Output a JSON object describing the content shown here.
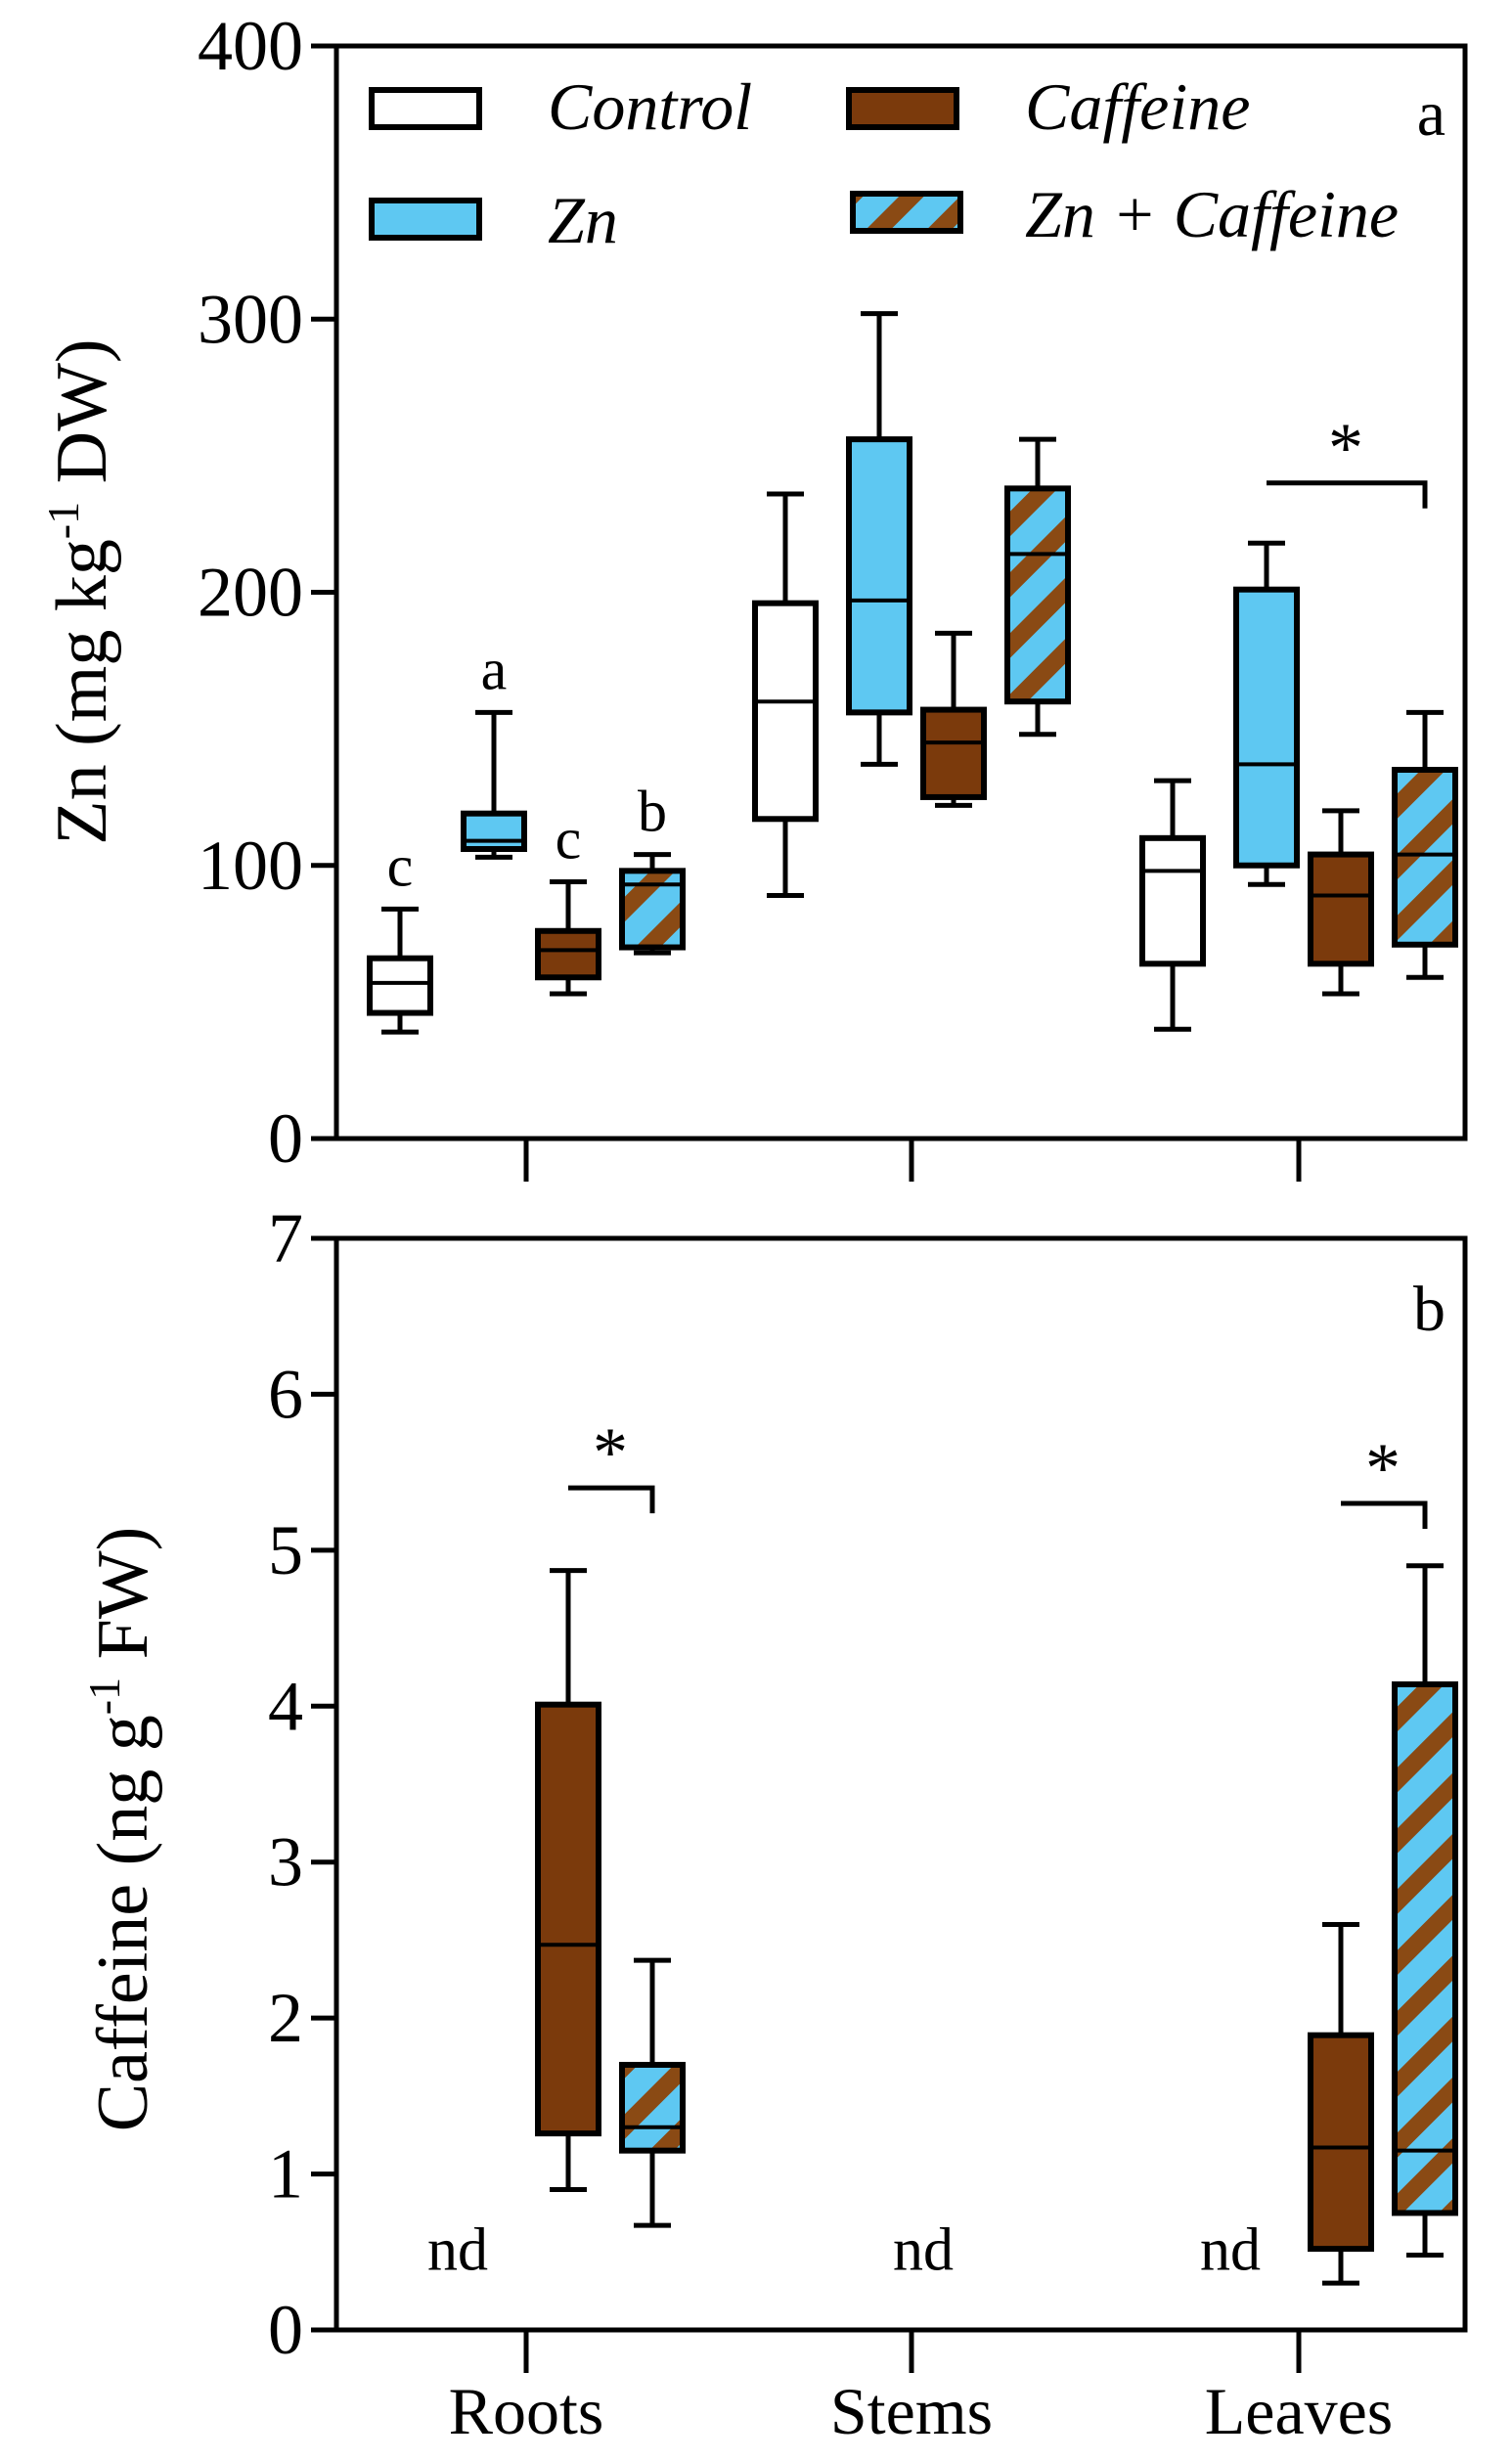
{
  "colors": {
    "control_fill": "#ffffff",
    "zn_fill": "#5ec8f2",
    "caffeine_fill": "#7b3a0c",
    "hatch_stripe": "#8a4a14",
    "line": "#000000"
  },
  "chart_data": [
    {
      "type": "box",
      "panel_label": "a",
      "ylabel_main": "Zn (mg kg",
      "ylabel_sup": "-1",
      "ylabel_end": " DW)",
      "ylim": [
        0,
        400
      ],
      "yticks": [
        0,
        100,
        200,
        300,
        400
      ],
      "categories": [
        "Roots",
        "Stems",
        "Leaves"
      ],
      "legend": {
        "position": "top",
        "entries": [
          "Control",
          "Zn",
          "Caffeine",
          "Zn + Caffeine"
        ]
      },
      "series": [
        {
          "name": "Control",
          "boxes": [
            {
              "category": "Roots",
              "min": 39,
              "q1": 46,
              "median": 57,
              "q3": 66,
              "max": 84,
              "letter": "c"
            },
            {
              "category": "Stems",
              "min": 89,
              "q1": 117,
              "median": 160,
              "q3": 196,
              "max": 236,
              "letter": ""
            },
            {
              "category": "Leaves",
              "min": 40,
              "q1": 64,
              "median": 98,
              "q3": 110,
              "max": 131,
              "letter": ""
            }
          ]
        },
        {
          "name": "Zn",
          "boxes": [
            {
              "category": "Roots",
              "min": 103,
              "q1": 106,
              "median": 109,
              "q3": 119,
              "max": 156,
              "letter": "a"
            },
            {
              "category": "Stems",
              "min": 137,
              "q1": 156,
              "median": 197,
              "q3": 256,
              "max": 302,
              "letter": ""
            },
            {
              "category": "Leaves",
              "min": 93,
              "q1": 100,
              "median": 137,
              "q3": 201,
              "max": 218,
              "letter": ""
            }
          ]
        },
        {
          "name": "Caffeine",
          "boxes": [
            {
              "category": "Roots",
              "min": 53,
              "q1": 59,
              "median": 69,
              "q3": 76,
              "max": 94,
              "letter": "c"
            },
            {
              "category": "Stems",
              "min": 122,
              "q1": 125,
              "median": 145,
              "q3": 157,
              "max": 185,
              "letter": ""
            },
            {
              "category": "Leaves",
              "min": 53,
              "q1": 64,
              "median": 89,
              "q3": 104,
              "max": 120,
              "letter": ""
            }
          ]
        },
        {
          "name": "Zn + Caffeine",
          "boxes": [
            {
              "category": "Roots",
              "min": 68,
              "q1": 70,
              "median": 93,
              "q3": 98,
              "max": 104,
              "letter": "b"
            },
            {
              "category": "Stems",
              "min": 148,
              "q1": 160,
              "median": 214,
              "q3": 238,
              "max": 256,
              "letter": ""
            },
            {
              "category": "Leaves",
              "min": 59,
              "q1": 71,
              "median": 104,
              "q3": 135,
              "max": 156,
              "letter": ""
            }
          ]
        }
      ],
      "significance": [
        {
          "category": "Leaves",
          "from": "Zn",
          "to": "Zn + Caffeine",
          "label": "*",
          "y": 240
        }
      ],
      "nd": []
    },
    {
      "type": "box",
      "panel_label": "b",
      "ylabel_main": "Caffeine (ng g",
      "ylabel_sup": "-1",
      "ylabel_end": " FW)",
      "ylim": [
        0,
        7
      ],
      "yticks": [
        0,
        1,
        2,
        3,
        4,
        5,
        6,
        7
      ],
      "categories": [
        "Roots",
        "Stems",
        "Leaves"
      ],
      "series": [
        {
          "name": "Caffeine",
          "boxes": [
            {
              "category": "Roots",
              "min": 0.9,
              "q1": 1.26,
              "median": 2.47,
              "q3": 4.01,
              "max": 4.87
            },
            {
              "category": "Leaves",
              "min": 0.3,
              "q1": 0.52,
              "median": 1.17,
              "q3": 1.89,
              "max": 2.6
            }
          ]
        },
        {
          "name": "Zn + Caffeine",
          "boxes": [
            {
              "category": "Roots",
              "min": 0.67,
              "q1": 1.15,
              "median": 1.3,
              "q3": 1.7,
              "max": 2.37
            },
            {
              "category": "Leaves",
              "min": 0.48,
              "q1": 0.75,
              "median": 1.15,
              "q3": 4.14,
              "max": 4.9
            }
          ]
        }
      ],
      "significance": [
        {
          "category": "Roots",
          "from": "Caffeine",
          "to": "Zn + Caffeine",
          "label": "*",
          "y": 5.4
        },
        {
          "category": "Leaves",
          "from": "Caffeine",
          "to": "Zn + Caffeine",
          "label": "*",
          "y": 5.3
        }
      ],
      "nd": [
        {
          "category": "Roots",
          "label": "nd"
        },
        {
          "category": "Stems",
          "label": "nd"
        },
        {
          "category": "Leaves",
          "label": "nd"
        }
      ]
    }
  ]
}
